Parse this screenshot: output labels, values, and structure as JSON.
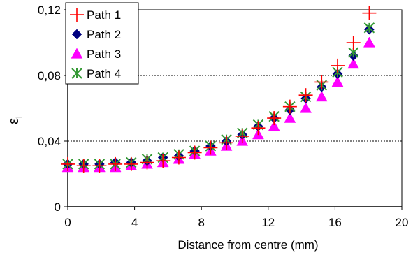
{
  "chart_data": {
    "type": "scatter",
    "title": "",
    "xlabel": "Distance from centre (mm)",
    "ylabel_symbol": "ε",
    "ylabel_subscript": "l",
    "xlim": [
      0,
      20
    ],
    "ylim": [
      0,
      0.12
    ],
    "xticks": [
      "0",
      "4",
      "8",
      "12",
      "16",
      "20"
    ],
    "xtick_values": [
      0,
      4,
      8,
      12,
      16,
      20
    ],
    "yticks": [
      "0",
      "0,04",
      "0,08",
      "0,12"
    ],
    "ytick_values": [
      0,
      0.04,
      0.08,
      0.12
    ],
    "grid": "horizontal dashed at 0.04 and 0.08",
    "legend_position": "top-left",
    "x": [
      0,
      0.95,
      1.9,
      2.85,
      3.8,
      4.75,
      5.7,
      6.65,
      7.6,
      8.55,
      9.5,
      10.45,
      11.4,
      12.35,
      13.3,
      14.25,
      15.2,
      16.15,
      17.1,
      18.05
    ],
    "series": [
      {
        "name": "Path 1",
        "marker": "plus",
        "color": "#ff0000",
        "values": [
          0.026,
          0.025,
          0.025,
          0.026,
          0.026,
          0.027,
          0.028,
          0.03,
          0.033,
          0.036,
          0.039,
          0.043,
          0.048,
          0.054,
          0.061,
          0.068,
          0.076,
          0.086,
          0.1,
          0.118
        ]
      },
      {
        "name": "Path 2",
        "marker": "diamond",
        "color": "#000080",
        "values": [
          0.026,
          0.026,
          0.026,
          0.027,
          0.027,
          0.028,
          0.03,
          0.031,
          0.034,
          0.037,
          0.04,
          0.044,
          0.049,
          0.054,
          0.059,
          0.066,
          0.073,
          0.081,
          0.092,
          0.108
        ]
      },
      {
        "name": "Path 3",
        "marker": "triangle",
        "color": "#ff00ff",
        "values": [
          0.024,
          0.024,
          0.024,
          0.024,
          0.025,
          0.026,
          0.027,
          0.029,
          0.032,
          0.034,
          0.037,
          0.04,
          0.044,
          0.049,
          0.054,
          0.06,
          0.067,
          0.076,
          0.087,
          0.1
        ]
      },
      {
        "name": "Path 4",
        "marker": "asterisk",
        "color": "#339933",
        "values": [
          0.026,
          0.026,
          0.026,
          0.026,
          0.027,
          0.029,
          0.03,
          0.032,
          0.034,
          0.037,
          0.041,
          0.045,
          0.05,
          0.055,
          0.061,
          0.067,
          0.074,
          0.082,
          0.094,
          0.109
        ]
      }
    ]
  }
}
